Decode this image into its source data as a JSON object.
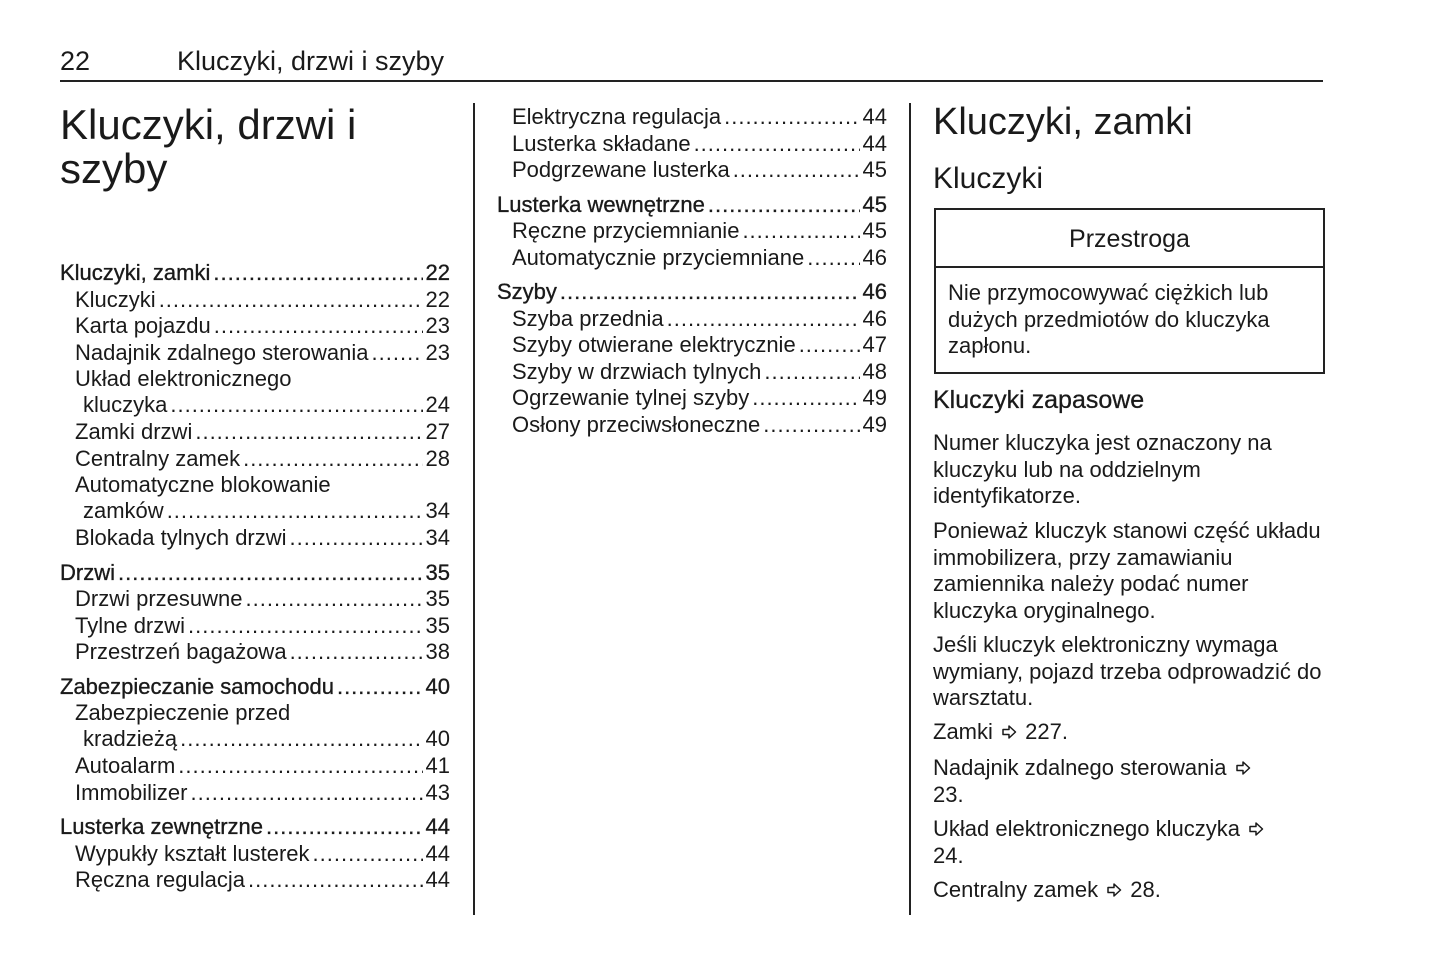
{
  "header": {
    "page_number": "22",
    "title": "Kluczyki, drzwi i szyby"
  },
  "main_title": "Kluczyki, drzwi i szyby",
  "toc": {
    "column1": [
      {
        "label": "Kluczyki, zamki",
        "page": "22",
        "level": 1
      },
      {
        "label": "Kluczyki",
        "page": "22",
        "level": 2
      },
      {
        "label": "Karta pojazdu",
        "page": "23",
        "level": 2
      },
      {
        "label": "Nadajnik zdalnego sterowania",
        "page": "23",
        "level": 2
      },
      {
        "label": "Układ elektronicznego",
        "cont": "kluczyka",
        "page": "24",
        "level": 2
      },
      {
        "label": "Zamki drzwi",
        "page": "27",
        "level": 2
      },
      {
        "label": "Centralny zamek",
        "page": "28",
        "level": 2
      },
      {
        "label": "Automatyczne blokowanie",
        "cont": "zamków",
        "page": "34",
        "level": 2
      },
      {
        "label": "Blokada tylnych drzwi",
        "page": "34",
        "level": 2
      },
      {
        "label": "Drzwi",
        "page": "35",
        "level": 1
      },
      {
        "label": "Drzwi przesuwne",
        "page": "35",
        "level": 2
      },
      {
        "label": "Tylne drzwi",
        "page": "35",
        "level": 2
      },
      {
        "label": "Przestrzeń bagażowa",
        "page": "38",
        "level": 2
      },
      {
        "label": "Zabezpieczanie samochodu",
        "page": "40",
        "level": 1
      },
      {
        "label": "Zabezpieczenie przed",
        "cont": "kradzieżą",
        "page": "40",
        "level": 2
      },
      {
        "label": "Autoalarm",
        "page": "41",
        "level": 2
      },
      {
        "label": "Immobilizer",
        "page": "43",
        "level": 2
      },
      {
        "label": "Lusterka zewnętrzne",
        "page": "44",
        "level": 1
      },
      {
        "label": "Wypukły kształt lusterek",
        "page": "44",
        "level": 2
      },
      {
        "label": "Ręczna regulacja",
        "page": "44",
        "level": 2
      }
    ],
    "column2": [
      {
        "label": "Elektryczna regulacja",
        "page": "44",
        "level": 2
      },
      {
        "label": "Lusterka składane",
        "page": "44",
        "level": 2
      },
      {
        "label": "Podgrzewane lusterka",
        "page": "45",
        "level": 2
      },
      {
        "label": "Lusterka wewnętrzne",
        "page": "45",
        "level": 1
      },
      {
        "label": "Ręczne przyciemnianie",
        "page": "45",
        "level": 2
      },
      {
        "label": "Automatycznie przyciemniane",
        "page": "46",
        "level": 2
      },
      {
        "label": "Szyby",
        "page": "46",
        "level": 1
      },
      {
        "label": "Szyba przednia",
        "page": "46",
        "level": 2
      },
      {
        "label": "Szyby otwierane elektrycznie",
        "page": "47",
        "level": 2
      },
      {
        "label": "Szyby w drzwiach tylnych",
        "page": "48",
        "level": 2
      },
      {
        "label": "Ogrzewanie tylnej szyby",
        "page": "49",
        "level": 2
      },
      {
        "label": "Osłony przeciwsłoneczne",
        "page": "49",
        "level": 2
      }
    ]
  },
  "right": {
    "title": "Kluczyki, zamki",
    "subtitle": "Kluczyki",
    "warning": {
      "heading": "Przestroga",
      "text": "Nie przymocowywać ciężkich lub dużych przedmiotów do kluczyka zapłonu."
    },
    "spare_heading": "Kluczyki zapasowe",
    "paragraphs": [
      "Numer kluczyka jest oznaczony na kluczyku lub na oddzielnym identyfikatorze.",
      "Ponieważ kluczyk stanowi część układu immobilizera, przy zamawianiu zamiennika należy podać numer kluczyka oryginalnego.",
      "Jeśli kluczyk elektroniczny wymaga wymiany, pojazd trzeba odprowadzić do warsztatu."
    ],
    "refs": [
      {
        "text": "Zamki",
        "page": "227."
      },
      {
        "text": "Nadajnik zdalnego sterowania",
        "page": "23."
      },
      {
        "text": "Układ elektronicznego kluczyka",
        "page": "24."
      },
      {
        "text": "Centralny zamek",
        "page": "28."
      }
    ],
    "ref_icon": "arrow-right-outline-icon"
  }
}
